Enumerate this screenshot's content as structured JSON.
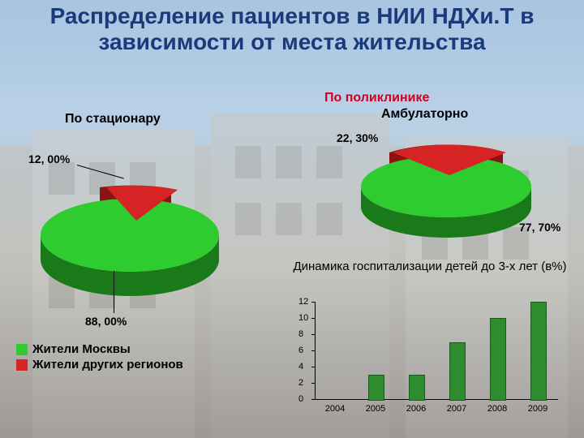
{
  "title": "Распределение пациентов в НИИ НДХи.Т в зависимости от места жительства",
  "colors": {
    "moscow": "#2ecc2e",
    "moscow_dark": "#1a7a1a",
    "regions": "#d62424",
    "regions_dark": "#8a1414",
    "title": "#1a3a7a",
    "poliklinika_red": "#d00020",
    "bar_fill": "#2e8b2e",
    "text": "#000000"
  },
  "pie_left": {
    "heading": "По стационару",
    "type": "pie-3d",
    "slices": [
      {
        "key": "moscow",
        "label": "88, 00%",
        "value": 88.0
      },
      {
        "key": "regions",
        "label": "12, 00%",
        "value": 12.0
      }
    ],
    "label_fontsize": 14
  },
  "subtitle_red": "По  поликлинике",
  "pie_right": {
    "heading": "Амбулаторно",
    "type": "pie-3d",
    "slices": [
      {
        "key": "moscow",
        "label": "77, 70%",
        "value": 77.7
      },
      {
        "key": "regions",
        "label": "22, 30%",
        "value": 22.3
      }
    ],
    "label_fontsize": 14
  },
  "legend": {
    "items": [
      {
        "key": "moscow",
        "text": "Жители Москвы"
      },
      {
        "key": "regions",
        "text": "Жители других регионов"
      }
    ]
  },
  "bar_chart": {
    "title": "Динамика госпитализации детей до 3-х лет (в%)",
    "type": "bar",
    "categories": [
      "2004",
      "2005",
      "2006",
      "2007",
      "2008",
      "2009"
    ],
    "values": [
      0,
      3,
      3,
      7,
      10,
      12
    ],
    "ylim": [
      0,
      12
    ],
    "ytick_step": 2,
    "bar_fill": "#2e8b2e",
    "bar_border": "#1a5a1a",
    "label_fontsize": 11
  }
}
